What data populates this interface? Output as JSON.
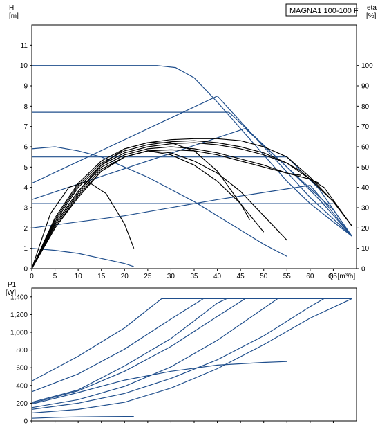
{
  "title": "MAGNA1 100-100 F",
  "colors": {
    "curve": "#1f4e8c",
    "eta": "#000000",
    "axis": "#000000"
  },
  "chart_data": [
    {
      "type": "line",
      "xlabel": "Q",
      "xunit": "[m³/h]",
      "ylabel": "H",
      "yunit": "[m]",
      "y2label": "eta",
      "y2unit": "[%]",
      "xlim": [
        0,
        70
      ],
      "ylim": [
        0,
        12
      ],
      "y2lim": [
        0,
        120
      ],
      "xticks": [
        "0",
        "5",
        "10",
        "15",
        "20",
        "25",
        "30",
        "35",
        "40",
        "45",
        "50",
        "55",
        "60",
        "65"
      ],
      "yticks": [
        "0",
        "1",
        "2",
        "3",
        "4",
        "5",
        "6",
        "7",
        "8",
        "9",
        "10",
        "11"
      ],
      "y2ticks": [
        "0",
        "10",
        "20",
        "30",
        "40",
        "50",
        "60",
        "70",
        "80",
        "90",
        "100"
      ],
      "xticks_values": [
        0,
        5,
        10,
        15,
        20,
        25,
        30,
        35,
        40,
        45,
        50,
        55,
        60,
        65
      ],
      "yticks_values": [
        0,
        1,
        2,
        3,
        4,
        5,
        6,
        7,
        8,
        9,
        10,
        11
      ],
      "series_head": [
        {
          "x": [
            0,
            10,
            20,
            27,
            31,
            35,
            40,
            45,
            50,
            55,
            60,
            65,
            69
          ],
          "y": [
            10.0,
            10.0,
            10.0,
            10.0,
            9.9,
            9.4,
            8.2,
            6.9,
            5.6,
            4.3,
            3.2,
            2.3,
            1.6
          ]
        },
        {
          "x": [
            0,
            20,
            42.5,
            55,
            65,
            69
          ],
          "y": [
            7.7,
            7.7,
            7.7,
            5.0,
            2.9,
            1.6
          ]
        },
        {
          "x": [
            0,
            40,
            50,
            60,
            69
          ],
          "y": [
            4.2,
            8.5,
            6.0,
            3.5,
            1.6
          ]
        },
        {
          "x": [
            0,
            46,
            55,
            62,
            69
          ],
          "y": [
            3.4,
            6.9,
            5.0,
            3.4,
            1.6
          ]
        },
        {
          "x": [
            0,
            20,
            40,
            55,
            62,
            69
          ],
          "y": [
            5.5,
            5.5,
            5.5,
            5.5,
            3.9,
            1.6
          ]
        },
        {
          "x": [
            0,
            20,
            40,
            60,
            63,
            69
          ],
          "y": [
            2.0,
            2.6,
            3.4,
            4.1,
            3.3,
            1.6
          ]
        },
        {
          "x": [
            0,
            20,
            40,
            60,
            65
          ],
          "y": [
            3.2,
            3.2,
            3.2,
            3.2,
            3.2
          ]
        },
        {
          "x": [
            0,
            5,
            10,
            15,
            20,
            25,
            30,
            35,
            40,
            45,
            50,
            55
          ],
          "y": [
            5.9,
            6.0,
            5.8,
            5.5,
            5.0,
            4.5,
            3.9,
            3.3,
            2.6,
            1.9,
            1.2,
            0.6
          ]
        },
        {
          "x": [
            0,
            5,
            10,
            15,
            20,
            22
          ],
          "y": [
            1.0,
            0.9,
            0.75,
            0.5,
            0.25,
            0.1
          ]
        }
      ],
      "series_eta": [
        {
          "x": [
            0,
            5,
            10,
            15,
            20,
            25,
            30,
            35,
            40,
            45,
            50,
            55,
            60,
            65,
            69
          ],
          "y": [
            0,
            25,
            42,
            53,
            59,
            62,
            63.5,
            64,
            64,
            63,
            60,
            55,
            45,
            33,
            21
          ]
        },
        {
          "x": [
            0,
            5,
            10,
            15,
            20,
            25,
            30,
            35,
            40,
            45,
            50,
            55,
            60,
            65,
            69
          ],
          "y": [
            0,
            24,
            41,
            52,
            58,
            61,
            62.5,
            63,
            62,
            60,
            57,
            52,
            44,
            33,
            21
          ]
        },
        {
          "x": [
            0,
            5,
            10,
            15,
            20,
            25,
            30,
            35,
            40,
            45,
            50,
            55,
            58,
            60,
            63,
            69
          ],
          "y": [
            0,
            23,
            40,
            51,
            57,
            60,
            61.5,
            62,
            61,
            59,
            56,
            52,
            48,
            44,
            40,
            21
          ]
        },
        {
          "x": [
            0,
            5,
            10,
            15,
            20,
            25,
            30,
            35,
            40,
            45,
            50,
            55,
            60,
            62
          ],
          "y": [
            0,
            22,
            38,
            50,
            56,
            59,
            60,
            59,
            57,
            54,
            51,
            47,
            44,
            42
          ]
        },
        {
          "x": [
            0,
            5,
            10,
            15,
            20,
            25,
            30,
            35,
            40,
            45,
            50,
            55,
            58
          ],
          "y": [
            0,
            21,
            37,
            49,
            55,
            58,
            58.5,
            58,
            56,
            53,
            50,
            47,
            46
          ]
        },
        {
          "x": [
            0,
            5,
            10,
            15,
            20,
            25,
            30,
            35,
            40,
            45,
            50,
            55
          ],
          "y": [
            0,
            20,
            36,
            48,
            55,
            58,
            57,
            53,
            47,
            38,
            26,
            14
          ]
        },
        {
          "x": [
            0,
            5,
            10,
            15,
            20,
            25,
            30,
            35,
            40,
            45,
            50
          ],
          "y": [
            0,
            20,
            35,
            48,
            55,
            58,
            56,
            51,
            43,
            32,
            18
          ]
        },
        {
          "x": [
            0,
            5,
            10,
            15,
            20,
            25,
            30,
            35,
            40,
            45,
            47
          ],
          "y": [
            0,
            22,
            38,
            51,
            59,
            62,
            62,
            58,
            48,
            32,
            24
          ]
        },
        {
          "x": [
            0,
            4,
            8,
            12,
            16,
            20,
            22
          ],
          "y": [
            0,
            27,
            40,
            43,
            37,
            22,
            10
          ]
        }
      ]
    },
    {
      "type": "line",
      "ylabel": "P1",
      "yunit": "[W]",
      "xlim": [
        0,
        70
      ],
      "ylim": [
        0,
        1500
      ],
      "yticks": [
        "0",
        "200",
        "400",
        "600",
        "800",
        "1,000",
        "1,200",
        "1,400"
      ],
      "yticks_values": [
        0,
        200,
        400,
        600,
        800,
        1000,
        1200,
        1400
      ],
      "series": [
        {
          "x": [
            0,
            10,
            20,
            28,
            69
          ],
          "y": [
            450,
            730,
            1050,
            1380,
            1380
          ]
        },
        {
          "x": [
            0,
            10,
            20,
            30,
            37,
            69
          ],
          "y": [
            330,
            530,
            810,
            1150,
            1380,
            1380
          ]
        },
        {
          "x": [
            0,
            10,
            20,
            30,
            40,
            42,
            69
          ],
          "y": [
            210,
            350,
            620,
            930,
            1330,
            1380,
            1380
          ]
        },
        {
          "x": [
            0,
            10,
            20,
            30,
            40,
            46,
            69
          ],
          "y": [
            200,
            340,
            560,
            840,
            1180,
            1380,
            1380
          ]
        },
        {
          "x": [
            0,
            10,
            20,
            30,
            40,
            50,
            53,
            69
          ],
          "y": [
            150,
            240,
            390,
            610,
            910,
            1270,
            1380,
            1380
          ]
        },
        {
          "x": [
            0,
            10,
            20,
            30,
            40,
            50,
            60,
            63,
            69
          ],
          "y": [
            130,
            200,
            310,
            480,
            690,
            960,
            1290,
            1380,
            1380
          ]
        },
        {
          "x": [
            0,
            10,
            20,
            30,
            40,
            50,
            60,
            69
          ],
          "y": [
            90,
            130,
            210,
            370,
            590,
            860,
            1160,
            1380
          ]
        },
        {
          "x": [
            0,
            10,
            20,
            30,
            40,
            50,
            55
          ],
          "y": [
            190,
            320,
            460,
            560,
            630,
            660,
            670
          ]
        },
        {
          "x": [
            0,
            5,
            10,
            15,
            20,
            22
          ],
          "y": [
            30,
            40,
            45,
            48,
            50,
            50
          ]
        }
      ]
    }
  ]
}
